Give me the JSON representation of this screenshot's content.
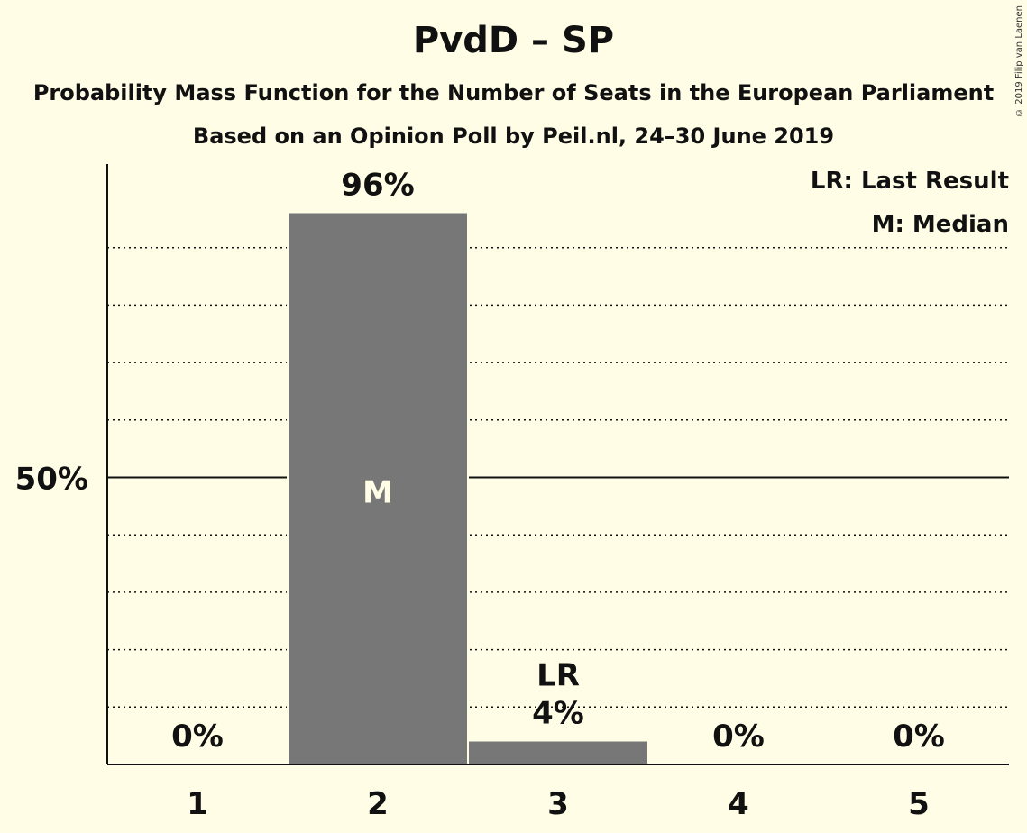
{
  "header": {
    "title": "PvdD – SP",
    "subtitle1": "Probability Mass Function for the Number of Seats in the European Parliament",
    "subtitle2": "Based on an Opinion Poll by Peil.nl, 24–30 June 2019",
    "copyright": "© 2019 Filip van Laenen"
  },
  "legend": {
    "last_result": "LR: Last Result",
    "median": "M: Median"
  },
  "colors": {
    "background": "#fffde6",
    "bar": "#777777",
    "text": "#111111",
    "median_marker": "#fffde6"
  },
  "chart_data": {
    "type": "bar",
    "categories": [
      "1",
      "2",
      "3",
      "4",
      "5"
    ],
    "values": [
      0,
      96,
      4,
      0,
      0
    ],
    "value_labels": [
      "0%",
      "96%",
      "4%",
      "0%",
      "0%"
    ],
    "ylim": [
      0,
      100
    ],
    "y_tick_label": "50%",
    "y_tick_value": 50,
    "grid_minor_step": 10,
    "median_category": "2",
    "median_label": "M",
    "last_result_category": "3",
    "last_result_label": "LR",
    "legend_position": "top-right"
  }
}
